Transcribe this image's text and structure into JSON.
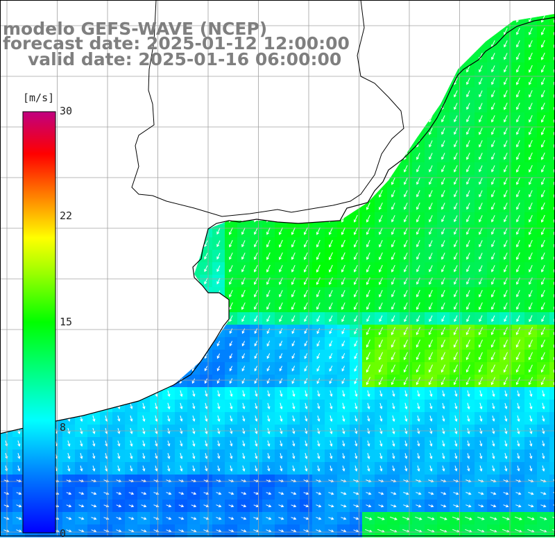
{
  "title": {
    "model": "modelo GEFS-WAVE (NCEP)",
    "forecast": "forecast date: 2025-01-12 12:00:00",
    "valid": "valid date: 2025-01-16 06:00:00"
  },
  "colorbar": {
    "unit": "[m/s]",
    "ticks": [
      "30",
      "22",
      "15",
      "8",
      "0"
    ],
    "tick_values": [
      30,
      22,
      15,
      8,
      0
    ],
    "range": [
      0,
      30
    ],
    "colors": [
      "#0000ff",
      "#0080ff",
      "#00ffff",
      "#00ff00",
      "#ffff00",
      "#ff8000",
      "#ff0000",
      "#c00080"
    ]
  },
  "field": {
    "variable": "wind speed",
    "land_color": "#ffffff",
    "coast_color": "#000000",
    "grid_color": "#a0a0a0",
    "arrow_color": "#ffffff",
    "mean_direction": "southwest"
  }
}
